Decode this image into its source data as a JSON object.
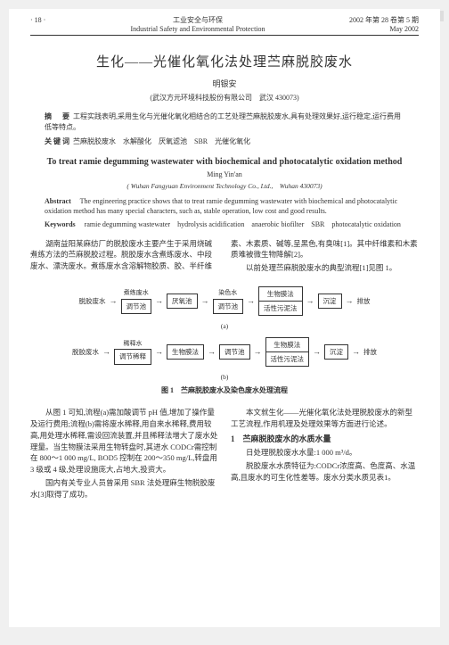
{
  "url_bar": "百度文库 www.jqxpw.com",
  "header": {
    "page_num": "· 18 ·",
    "journal_cn": "工业安全与环保",
    "journal_en": "Industrial Safety and Environmental Protection",
    "issue": "2002 年第 28 卷第 5 期",
    "date": "May 2002"
  },
  "title_cn": "生化——光催化氧化法处理苎麻脱胶废水",
  "author_cn": "明银安",
  "affil_cn": "(武汉方元环境科技股份有限公司　武汉 430073)",
  "abstract_cn_label": "摘　要",
  "abstract_cn": "工程实践表明,采用生化与光催化氧化相结合的工艺处理苎麻脱胶废水,具有处理效果好,运行稳定,运行费用低等特点。",
  "keywords_cn_label": "关键词",
  "keywords_cn": "苎麻脱胶废水　水解酸化　厌氧滤池　SBR　光催化氧化",
  "title_en": "To treat ramie degumming wastewater with biochemical and photocatalytic oxidation method",
  "author_en": "Ming Yin'an",
  "affil_en": "( Wuhan Fangyuan Environment Technology Co., Ltd.,　Wuhan 430073)",
  "abstract_en_label": "Abstract",
  "abstract_en": "The engineering practice shows that to treat ramie degumming wastewater with biochemical and photocatalytic oxidation method has many special characters, such as, stable operation, low cost and good results.",
  "keywords_en_label": "Keywords",
  "keywords_en": "ramie degumming wastewater　hydrolysis acidification　anaerobic biofilter　SBR　photocatalytic oxidation",
  "intro": {
    "p1": "湖南益阳某麻纺厂的脱胶废水主要产生于采用烧碱煮练方法的苎麻脱胶过程。脱胶废水含煮练废水、中段废水、漂洗废水。煮练废水含溶解物胶质、胶、半纤维素、木素质、碱等,呈黑色,有臭味[1]。其中纤维素和木素质难被微生物降解[2]。",
    "p2": "以前处理苎麻脱胶废水的典型流程[1]见图 1。"
  },
  "flow_a": {
    "in": "脱胶废水",
    "b1": "调节池",
    "b2": "厌氧池",
    "b3": "调节池",
    "stack_top": "生物膜法",
    "stack_bot": "活性污泥法",
    "b5": "沉淀",
    "out": "排放",
    "top_label1": "煮练废水",
    "top_label2": "染色水",
    "sublabel": "(a)"
  },
  "flow_b": {
    "in": "脱胶废水",
    "b1": "调节稀释",
    "b2": "生物膜法",
    "b3": "调节池",
    "stack_top": "生物膜法",
    "stack_bot": "活性污泥法",
    "b5": "沉淀",
    "out": "排放",
    "top_label1": "稀释水",
    "sublabel": "(b)"
  },
  "fig_caption": "图 1　苎麻脱胶废水及染色废水处理流程",
  "body": {
    "p1": "从图 1 可知,流程(a)需加酸调节 pH 值,增加了操作量及运行费用;流程(b)需将废水稀释,用自来水稀释,费用较高,用处理水稀释,需设回流装置,并且稀释法增大了废水处理量。当生物膜法采用生物转盘时,其进水 CODCr需控制在 800～1 000 mg/L, BOD5 控制在 200～350 mg/L,转盘用 3 级或 4 级,处理设施庞大,占地大,投资大。",
    "p2": "国内有关专业人员曾采用 SBR 法处理麻生物脱胶废水[3]取得了成功。",
    "p3": "本文就生化——光催化氧化法处理脱胶废水的新型工艺流程,作用机理及处理效果等方面进行论述。",
    "h1": "1　苎麻脱胶废水的水质水量",
    "p4": "日处理脱胶废水水量:1 000 m³/d。",
    "p5": "脱胶废水水质特征为:CODCr浓度高、色度高、水温高,且废水的可生化性差等。废水分类水质见表1。"
  }
}
